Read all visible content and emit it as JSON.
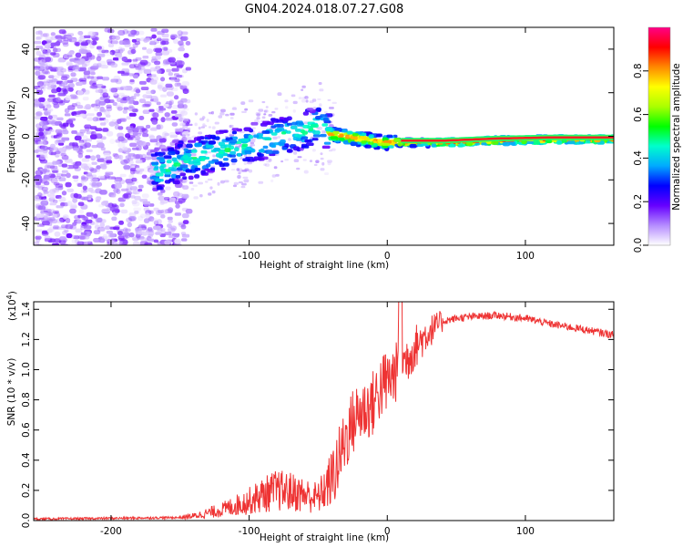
{
  "chart_data": [
    {
      "type": "heatmap",
      "title": "GN04.2024.018.07.27.G08",
      "xlabel": "Height of straight line (km)",
      "ylabel": "Frequency (Hz)",
      "xlim": [
        -256,
        164
      ],
      "ylim": [
        -50,
        50
      ],
      "xticks": [
        -200,
        -100,
        0,
        100
      ],
      "yticks": [
        -40,
        -20,
        0,
        20,
        40
      ],
      "colorbar": {
        "label": "Normalized spectral amplitude",
        "range": [
          0,
          1
        ],
        "ticks": [
          "0.0",
          "0.2",
          "0.4",
          "0.6",
          "0.8"
        ],
        "colors": [
          "#ffffff",
          "#b58cff",
          "#6600ff",
          "#0000ff",
          "#00aaff",
          "#00ffcc",
          "#00ff00",
          "#aaff00",
          "#ffff00",
          "#ff8800",
          "#ff0000",
          "#ff0088"
        ]
      },
      "ridge": {
        "x": [
          -165,
          -150,
          -130,
          -110,
          -90,
          -75,
          -60,
          -50,
          -45,
          -35,
          -25,
          -15,
          -5,
          0,
          10,
          40,
          80,
          120,
          164
        ],
        "y": [
          -15,
          -10,
          -7,
          -4,
          -1,
          2,
          4,
          6,
          2,
          1,
          0,
          -1,
          -2,
          -2,
          -2,
          -2,
          -1,
          -0.5,
          -0.5
        ]
      }
    },
    {
      "type": "line",
      "xlabel": "Height of straight line (km)",
      "ylabel": "SNR (10 * v/v)",
      "scale_label": "(x10",
      "scale_exp": "4",
      "scale_close": ")",
      "xlim": [
        -256,
        164
      ],
      "ylim": [
        0,
        1.45
      ],
      "xticks": [
        -200,
        -100,
        0,
        100
      ],
      "yticks": [
        "0.0",
        "0.2",
        "0.4",
        "0.6",
        "0.8",
        "1.0",
        "1.2",
        "1.4"
      ],
      "color": "#ee3333",
      "x": [
        -256,
        -200,
        -150,
        -140,
        -120,
        -100,
        -90,
        -80,
        -70,
        -60,
        -50,
        -40,
        -35,
        -30,
        -25,
        -20,
        -15,
        -10,
        -5,
        0,
        5,
        10,
        20,
        30,
        40,
        50,
        60,
        80,
        100,
        120,
        140,
        164
      ],
      "y": [
        0.01,
        0.015,
        0.02,
        0.03,
        0.07,
        0.13,
        0.17,
        0.2,
        0.19,
        0.17,
        0.15,
        0.28,
        0.4,
        0.55,
        0.65,
        0.72,
        0.74,
        0.78,
        0.88,
        0.92,
        0.97,
        1.02,
        1.15,
        1.25,
        1.32,
        1.34,
        1.35,
        1.36,
        1.34,
        1.3,
        1.27,
        1.23
      ]
    }
  ]
}
